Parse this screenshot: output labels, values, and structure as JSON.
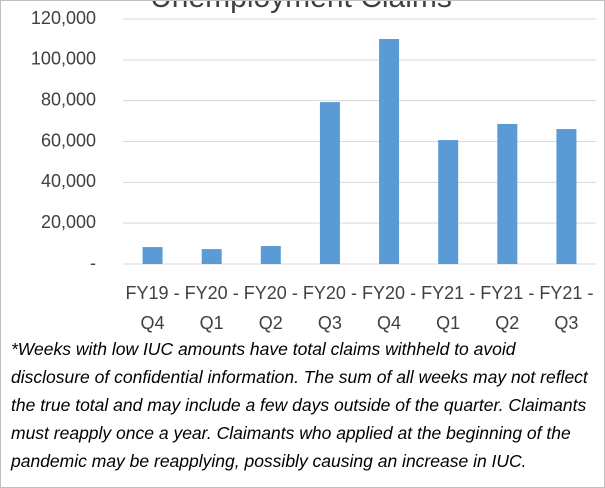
{
  "chart_data": {
    "type": "bar",
    "title": "Unemployment Claims",
    "categories": [
      "FY19 - Q4",
      "FY20 - Q1",
      "FY20 - Q2",
      "FY20 - Q3",
      "FY20 - Q4",
      "FY21 - Q1",
      "FY21 - Q2",
      "FY21 - Q3"
    ],
    "values": [
      8300,
      7300,
      8800,
      79300,
      110200,
      60700,
      68600,
      66100
    ],
    "color": "#5b9bd5",
    "ylim": [
      0,
      120000
    ],
    "yticks": [
      {
        "value": 0,
        "label": "-"
      },
      {
        "value": 20000,
        "label": "20,000"
      },
      {
        "value": 40000,
        "label": "40,000"
      },
      {
        "value": 60000,
        "label": "60,000"
      },
      {
        "value": 80000,
        "label": "80,000"
      },
      {
        "value": 100000,
        "label": "100,000"
      },
      {
        "value": 120000,
        "label": "120,000"
      }
    ],
    "grid": true,
    "footnote": "*Weeks with low IUC amounts have total claims withheld to avoid disclosure of confidential information. The sum of all weeks may not reflect the true total and may include a few days outside of the quarter. Claimants must reapply once a year. Claimants who applied at the beginning of the pandemic may be reapplying, possibly causing an increase in IUC."
  }
}
